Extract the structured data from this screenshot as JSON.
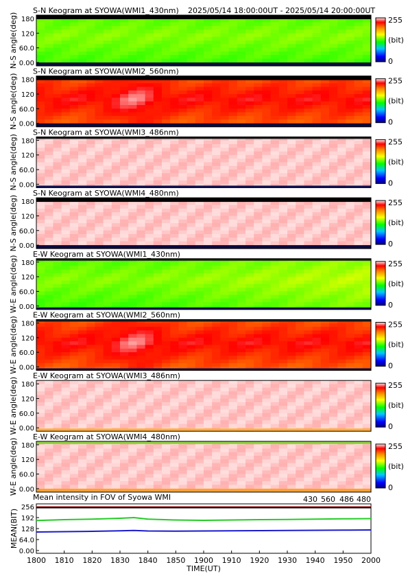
{
  "time_range": "2025/05/14 18:00:00UT - 2025/05/14 20:00:00UT",
  "colorbar": {
    "max_label": "255",
    "min_label": "0",
    "unit_label": "(bit)"
  },
  "panels": [
    {
      "title": "S-N Keogram at SYOWA(WMI1_430nm)",
      "ylabel": "N-S angle(deg)",
      "ticks": [
        "180",
        "120",
        "60.0",
        "0.00"
      ],
      "mean_level": 0.42,
      "band": 0.02,
      "edge": "dark"
    },
    {
      "title": "S-N Keogram at SYOWA(WMI2_560nm)",
      "ylabel": "N-S angle(deg)",
      "ticks": [
        "180",
        "120",
        "60.0",
        "0.00"
      ],
      "mean_level": 0.9,
      "band": 0.04,
      "edge": "dark"
    },
    {
      "title": "S-N Keogram at SYOWA(WMI3_486nm)",
      "ylabel": "N-S angle(deg)",
      "ticks": [
        "180",
        "120",
        "60.0",
        "0.00"
      ],
      "mean_level": 1.0,
      "band": 0.0,
      "edge": "thin"
    },
    {
      "title": "S-N Keogram at SYOWA(WMI4_480nm)",
      "ylabel": "N-S angle(deg)",
      "ticks": [
        "180",
        "120",
        "60.0",
        "0.00"
      ],
      "mean_level": 1.0,
      "band": 0.0,
      "edge": "dark"
    },
    {
      "title": "E-W Keogram at SYOWA(WMI1_430nm)",
      "ylabel": "W-E angle(deg)",
      "ticks": [
        "180",
        "120",
        "60.0",
        "0.00"
      ],
      "mean_level": 0.45,
      "band": 0.02,
      "edge": "thin"
    },
    {
      "title": "E-W Keogram at SYOWA(WMI2_560nm)",
      "ylabel": "W-E angle(deg)",
      "ticks": [
        "180",
        "120",
        "60.0",
        "0.00"
      ],
      "mean_level": 0.9,
      "band": 0.04,
      "edge": "thin"
    },
    {
      "title": "E-W Keogram at SYOWA(WMI3_486nm)",
      "ylabel": "W-E angle(deg)",
      "ticks": [
        "180",
        "120",
        "60.0",
        "0.00"
      ],
      "mean_level": 1.0,
      "band": 0.0,
      "edge": "bottom-orange"
    },
    {
      "title": "E-W Keogram at SYOWA(WMI4_480nm)",
      "ylabel": "W-E angle(deg)",
      "ticks": [
        "180",
        "120",
        "60.0",
        "0.00"
      ],
      "mean_level": 1.0,
      "band": 0.0,
      "edge": "green-orange"
    }
  ],
  "chart_data": {
    "type": "line",
    "title": "Mean intensity in FOV of Syowa WMI",
    "ylabel": "MEAN(BIT)",
    "xlabel": "TIME(UT)",
    "x_ticks": [
      "1800",
      "1810",
      "1820",
      "1830",
      "1840",
      "1850",
      "1900",
      "1910",
      "1920",
      "1930",
      "1940",
      "1950",
      "2000"
    ],
    "y_ticks": [
      "256",
      "192",
      "128",
      "64.0",
      "0.00"
    ],
    "ylim": [
      0,
      256
    ],
    "x": [
      "1800",
      "1810",
      "1820",
      "1830",
      "1835",
      "1840",
      "1850",
      "1900",
      "1910",
      "1920",
      "1930",
      "1940",
      "1950",
      "2000"
    ],
    "series": [
      {
        "name": "430",
        "color": "#1a1acc",
        "values": [
          108,
          110,
          112,
          115,
          117,
          114,
          113,
          114,
          115,
          116,
          117,
          118,
          119,
          120
        ]
      },
      {
        "name": "560",
        "color": "#22cc22",
        "values": [
          175,
          180,
          183,
          188,
          192,
          183,
          178,
          176,
          178,
          180,
          181,
          183,
          185,
          186
        ]
      },
      {
        "name": "486",
        "color": "#cc2222",
        "values": [
          254,
          254,
          254,
          254,
          254,
          254,
          254,
          254,
          254,
          254,
          254,
          254,
          254,
          254
        ]
      },
      {
        "name": "480",
        "color": "#000000",
        "values": [
          250,
          250,
          250,
          250,
          250,
          250,
          250,
          250,
          250,
          250,
          250,
          250,
          250,
          250
        ]
      }
    ]
  }
}
